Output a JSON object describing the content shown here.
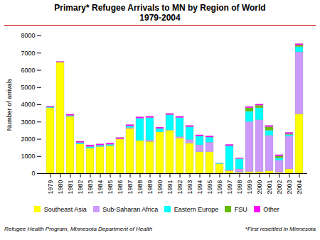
{
  "chart_data": {
    "type": "bar",
    "stacked": true,
    "title": "Primary* Refugee Arrivals to MN by Region of World\n1979-2004",
    "y_label": "Number of arrivals",
    "categories": [
      "1979",
      "1980",
      "1981",
      "1982",
      "1983",
      "1984",
      "1985",
      "1986",
      "1987",
      "1988",
      "1989",
      "1990",
      "1991",
      "1992",
      "1993",
      "1994",
      "1995",
      "1996",
      "1997",
      "1998",
      "1999",
      "2000",
      "2001",
      "2002",
      "2003",
      "2004"
    ],
    "series": [
      {
        "name": "Southeast Asia",
        "color": "#FFFF00",
        "values": [
          3800,
          6450,
          3300,
          1700,
          1450,
          1550,
          1600,
          2000,
          2600,
          1900,
          1850,
          2400,
          2500,
          2050,
          1750,
          1250,
          1250,
          550,
          150,
          50,
          100,
          100,
          150,
          50,
          250,
          3450
        ]
      },
      {
        "name": "Sub-Saharan Africa",
        "color": "#CC99FF",
        "values": [
          0,
          0,
          0,
          0,
          0,
          0,
          0,
          0,
          50,
          0,
          80,
          0,
          0,
          80,
          200,
          400,
          550,
          0,
          50,
          200,
          2900,
          3000,
          2050,
          700,
          1900,
          3600
        ]
      },
      {
        "name": "Eastern Europe",
        "color": "#00FFFF",
        "values": [
          50,
          0,
          50,
          80,
          100,
          80,
          80,
          0,
          100,
          1300,
          1300,
          200,
          900,
          1100,
          750,
          500,
          300,
          50,
          1400,
          600,
          600,
          700,
          300,
          150,
          100,
          300
        ]
      },
      {
        "name": "FSU",
        "color": "#66BB00",
        "values": [
          0,
          0,
          0,
          0,
          0,
          0,
          0,
          0,
          0,
          0,
          0,
          0,
          0,
          0,
          0,
          0,
          0,
          0,
          0,
          0,
          200,
          150,
          200,
          100,
          50,
          100
        ]
      },
      {
        "name": "Other",
        "color": "#FF00FF",
        "values": [
          50,
          50,
          80,
          80,
          100,
          80,
          80,
          80,
          80,
          80,
          80,
          80,
          80,
          80,
          80,
          80,
          80,
          0,
          80,
          50,
          80,
          80,
          80,
          80,
          80,
          80
        ]
      }
    ],
    "ylim": [
      0,
      8000
    ],
    "yticks": [
      0,
      1000,
      2000,
      3000,
      4000,
      5000,
      6000,
      7000,
      8000
    ],
    "grid": false,
    "legend": "bottom",
    "annotations": [
      "Refugee Health Program, Minnesota Department of Health",
      "*First resettled in Minnesota"
    ]
  }
}
